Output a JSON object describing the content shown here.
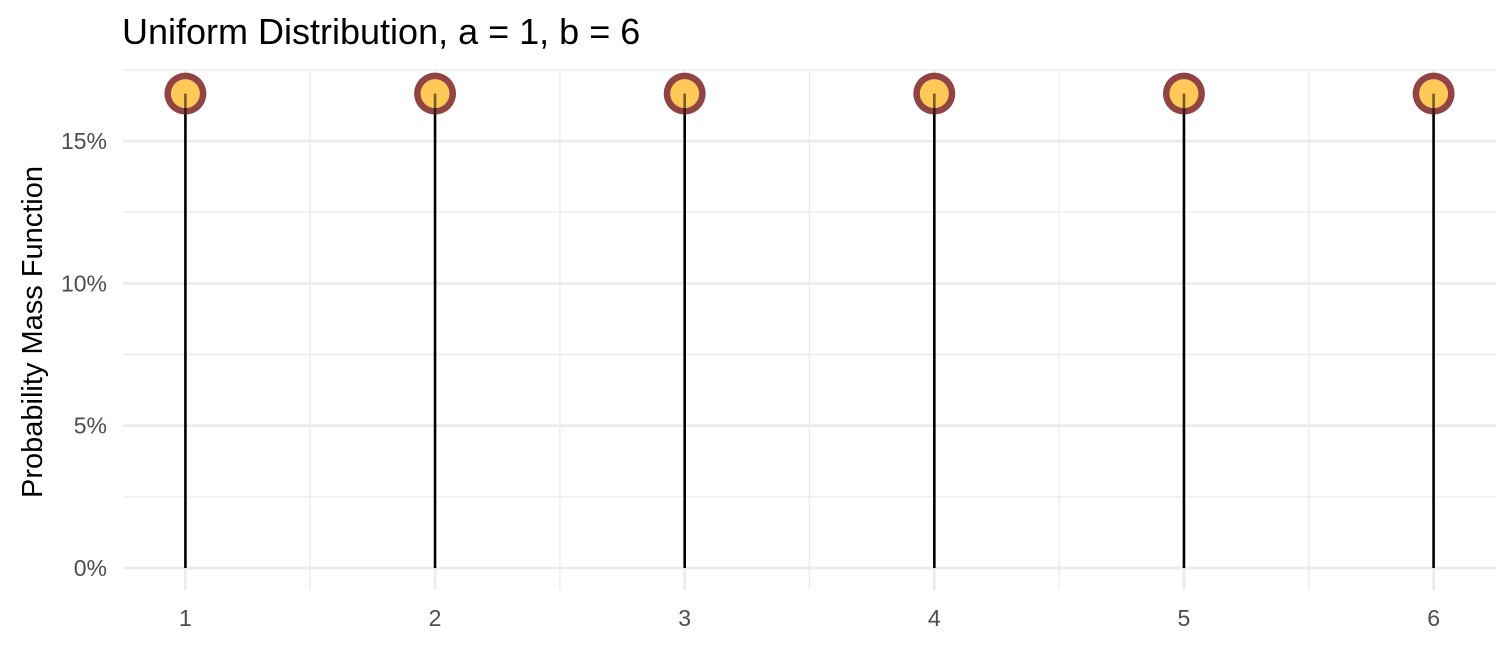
{
  "chart_data": {
    "type": "lollipop",
    "title": "Uniform Distribution, a = 1, b = 6",
    "xlabel": "",
    "ylabel": "Probability Mass Function",
    "x": [
      1,
      2,
      3,
      4,
      5,
      6
    ],
    "values": [
      0.1667,
      0.1667,
      0.1667,
      0.1667,
      0.1667,
      0.1667
    ],
    "x_tick_labels": [
      "1",
      "2",
      "3",
      "4",
      "5",
      "6"
    ],
    "y_ticks": [
      0,
      0.05,
      0.1,
      0.15
    ],
    "y_tick_labels": [
      "0%",
      "5%",
      "10%",
      "15%"
    ],
    "xlim": [
      0.75,
      6.25
    ],
    "ylim": [
      0,
      0.175
    ],
    "grid": true,
    "legend": "none",
    "colors": {
      "stem": "#000000",
      "point_fill": "#ffc857",
      "point_border": "#8b3a3a",
      "grid": "#ebebeb"
    }
  }
}
